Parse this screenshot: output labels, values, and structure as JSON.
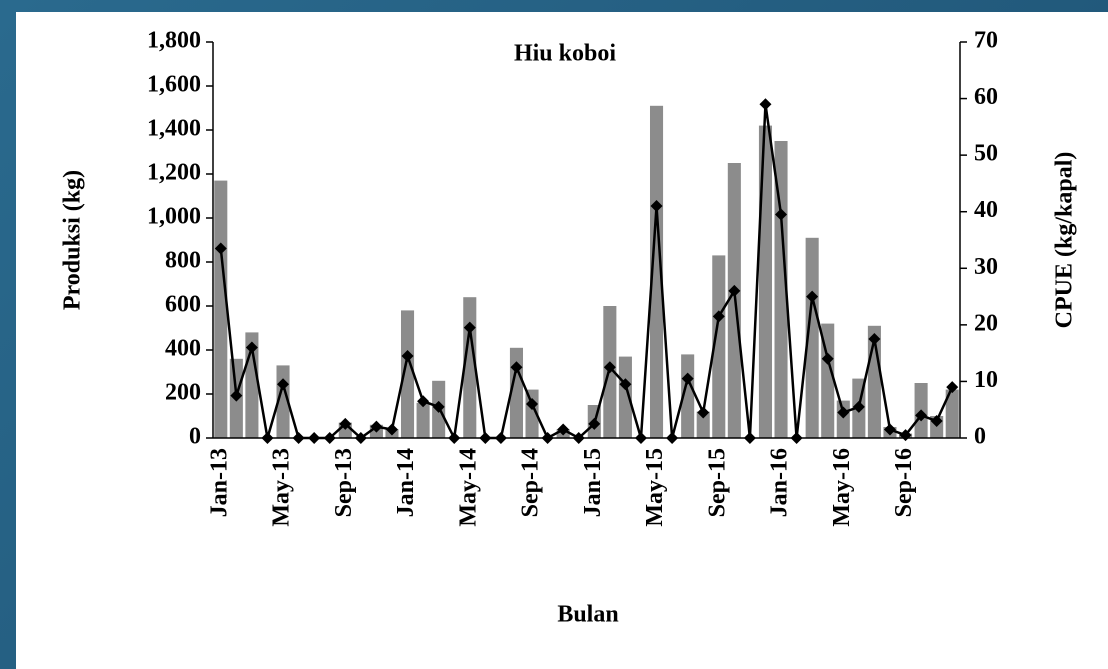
{
  "chart_data": {
    "type": "bar-line",
    "title": "Hiu koboi",
    "x_label": "Bulan",
    "y_label": "Produksi (kg)",
    "y2_label": "CPUE (kg/kapal)",
    "categories": [
      "Jan-13",
      null,
      null,
      null,
      "May-13",
      null,
      null,
      null,
      "Sep-13",
      null,
      null,
      null,
      "Jan-14",
      null,
      null,
      null,
      "May-14",
      null,
      null,
      null,
      "Sep-14",
      null,
      null,
      null,
      "Jan-15",
      null,
      null,
      null,
      "May-15",
      null,
      null,
      null,
      "Sep-15",
      null,
      null,
      null,
      "Jan-16",
      null,
      null,
      null,
      "May-16",
      null,
      null,
      null,
      "Sep-16",
      null,
      null,
      null
    ],
    "series": [
      {
        "type": "bar",
        "color": "#8c8c8c",
        "values": [
          1170,
          360,
          480,
          0,
          330,
          0,
          0,
          0,
          70,
          0,
          60,
          40,
          580,
          160,
          260,
          0,
          640,
          0,
          0,
          410,
          220,
          0,
          40,
          0,
          150,
          600,
          370,
          0,
          1510,
          0,
          380,
          120,
          830,
          1250,
          0,
          1420,
          1350,
          0,
          910,
          520,
          170,
          270,
          510,
          50,
          20,
          250,
          100,
          220
        ]
      },
      {
        "type": "line",
        "axis": "y2",
        "color": "#000000",
        "values": [
          33.5,
          7.5,
          16,
          0,
          9.5,
          0,
          0,
          0,
          2.5,
          0,
          2,
          1.5,
          14.5,
          6.5,
          5.5,
          0,
          19.5,
          0,
          0,
          12.5,
          6,
          0,
          1.5,
          0,
          2.5,
          12.5,
          9.5,
          0,
          41,
          0,
          10.5,
          4.5,
          21.5,
          26,
          0,
          59,
          39.5,
          0,
          25,
          14,
          4.5,
          5.5,
          17.5,
          1.5,
          0.5,
          4,
          3,
          9
        ]
      }
    ],
    "ylim": [
      0,
      1800
    ],
    "yticks": [
      0,
      200,
      400,
      600,
      800,
      {
        "value": 1000,
        "label": "1,000"
      },
      {
        "value": 1200,
        "label": "1,200"
      },
      {
        "value": 1400,
        "label": "1,400"
      },
      {
        "value": 1600,
        "label": "1,600"
      },
      {
        "value": 1800,
        "label": "1,800"
      }
    ],
    "y2lim": [
      0,
      70
    ],
    "y2ticks": [
      0,
      10,
      20,
      30,
      40,
      50,
      60,
      70
    ]
  }
}
